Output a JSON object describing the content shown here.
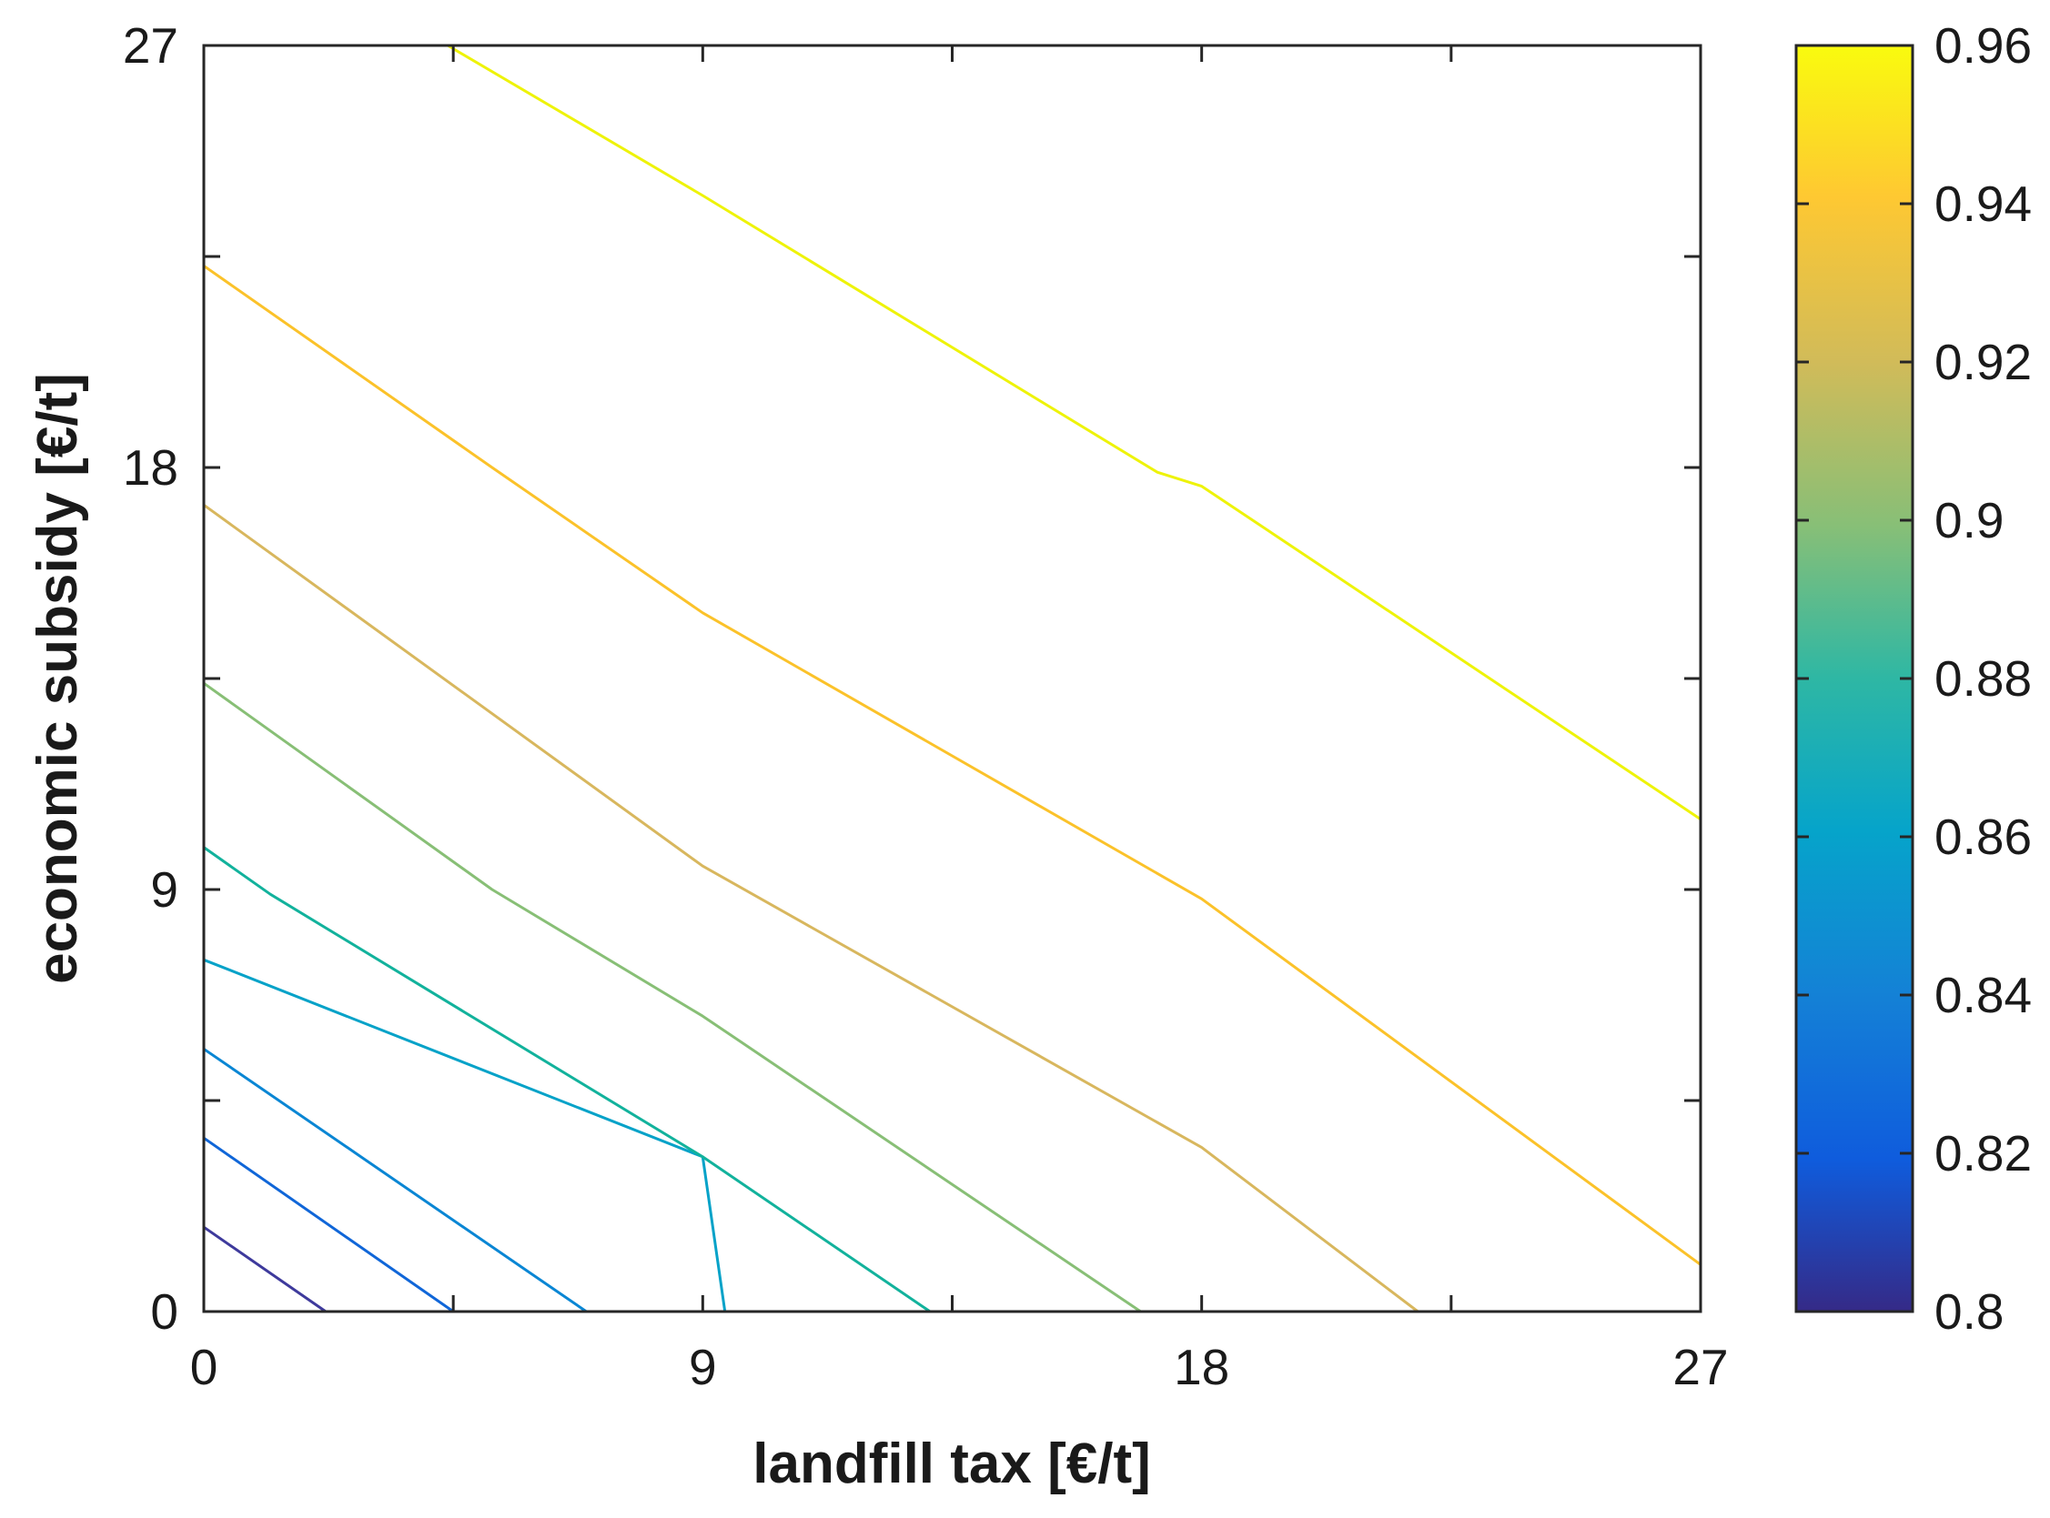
{
  "chart_data": {
    "type": "contour",
    "title": "",
    "xlabel": "landfill tax [€/t]",
    "ylabel": "economic subsidy [€/t]",
    "xlim": [
      0,
      27
    ],
    "ylim": [
      0,
      27
    ],
    "x_ticks": [
      0,
      9,
      18,
      27
    ],
    "y_ticks": [
      0,
      9,
      18,
      27
    ],
    "x_tick_labels": [
      "0",
      "9",
      "18",
      "27"
    ],
    "y_tick_labels": [
      "0",
      "9",
      "18",
      "27"
    ],
    "grid": false,
    "colorbar": {
      "range": [
        0.8,
        0.96
      ],
      "ticks": [
        0.8,
        0.82,
        0.84,
        0.86,
        0.88,
        0.9,
        0.92,
        0.94,
        0.96
      ],
      "tick_labels": [
        "0.8",
        "0.82",
        "0.84",
        "0.86",
        "0.88",
        "0.9",
        "0.92",
        "0.94",
        "0.96"
      ],
      "colormap": "parula",
      "stops": [
        {
          "v": 0.0,
          "color": "#352a87"
        },
        {
          "v": 0.12,
          "color": "#0f5cdd"
        },
        {
          "v": 0.25,
          "color": "#1481d6"
        },
        {
          "v": 0.38,
          "color": "#06a4ca"
        },
        {
          "v": 0.5,
          "color": "#2eb7a4"
        },
        {
          "v": 0.62,
          "color": "#87bf77"
        },
        {
          "v": 0.75,
          "color": "#d1bb59"
        },
        {
          "v": 0.88,
          "color": "#fec832"
        },
        {
          "v": 1.0,
          "color": "#f9fb0e"
        }
      ]
    },
    "contours": [
      {
        "level": 0.81,
        "color": "#3e3a9c",
        "points": [
          [
            0,
            1.8
          ],
          [
            2.2,
            0
          ]
        ]
      },
      {
        "level": 0.83,
        "color": "#1066d8",
        "points": [
          [
            0,
            3.7
          ],
          [
            4.5,
            0
          ]
        ]
      },
      {
        "level": 0.85,
        "color": "#0a86d4",
        "points": [
          [
            0,
            5.6
          ],
          [
            6.9,
            0
          ]
        ]
      },
      {
        "level": 0.87,
        "color": "#05a2c8",
        "points": [
          [
            0,
            7.5
          ],
          [
            9,
            3.3
          ],
          [
            9.4,
            0
          ]
        ]
      },
      {
        "level": 0.89,
        "color": "#12b29c",
        "points": [
          [
            0,
            9.9
          ],
          [
            1.2,
            8.9
          ],
          [
            9,
            3.3
          ],
          [
            13.1,
            0
          ]
        ]
      },
      {
        "level": 0.91,
        "color": "#88bf76",
        "points": [
          [
            0,
            13.4
          ],
          [
            5.2,
            9
          ],
          [
            9,
            6.3
          ],
          [
            16.9,
            0
          ]
        ]
      },
      {
        "level": 0.93,
        "color": "#d8b75e",
        "points": [
          [
            0,
            17.2
          ],
          [
            9,
            9.5
          ],
          [
            18,
            3.5
          ],
          [
            21.9,
            0
          ]
        ]
      },
      {
        "level": 0.94,
        "color": "#fbc22a",
        "points": [
          [
            0,
            22.3
          ],
          [
            5.2,
            18
          ],
          [
            9,
            14.9
          ],
          [
            18,
            8.8
          ],
          [
            27,
            1
          ]
        ]
      },
      {
        "level": 0.96,
        "color": "#eef309",
        "points": [
          [
            4.4,
            27
          ],
          [
            9,
            23.8
          ],
          [
            17.2,
            17.9
          ],
          [
            18,
            17.6
          ],
          [
            27,
            10.5
          ]
        ]
      }
    ]
  }
}
